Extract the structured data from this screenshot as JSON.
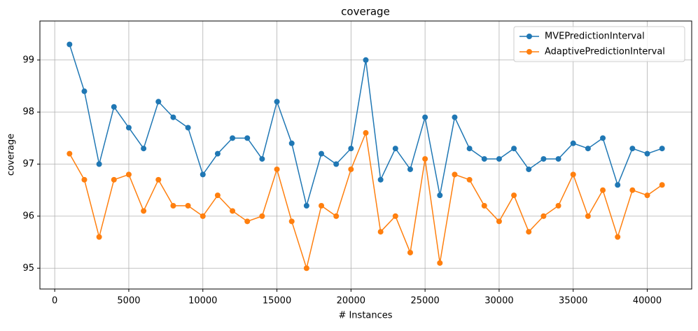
{
  "chart_data": {
    "type": "line",
    "title": "coverage",
    "x_label": "# Instances",
    "y_label": "coverage",
    "x": [
      1000,
      2000,
      3000,
      4000,
      5000,
      6000,
      7000,
      8000,
      9000,
      10000,
      11000,
      12000,
      13000,
      14000,
      15000,
      16000,
      17000,
      18000,
      19000,
      20000,
      21000,
      22000,
      23000,
      24000,
      25000,
      26000,
      27000,
      28000,
      29000,
      30000,
      31000,
      32000,
      33000,
      34000,
      35000,
      36000,
      37000,
      38000,
      39000,
      40000,
      41000
    ],
    "series": [
      {
        "name": "MVEPredictionInterval",
        "color": "#1f77b4",
        "values": [
          99.3,
          98.4,
          97.0,
          98.1,
          97.7,
          97.3,
          98.2,
          97.9,
          97.7,
          96.8,
          97.2,
          97.5,
          97.5,
          97.1,
          98.2,
          97.4,
          96.2,
          97.2,
          97.0,
          97.3,
          99.0,
          96.7,
          97.3,
          96.9,
          97.9,
          96.4,
          97.9,
          97.3,
          97.1,
          97.1,
          97.3,
          96.9,
          97.1,
          97.1,
          97.4,
          97.3,
          97.5,
          96.6,
          97.3,
          97.2,
          97.3
        ]
      },
      {
        "name": "AdaptivePredictionInterval",
        "color": "#ff7f0e",
        "values": [
          97.2,
          96.7,
          95.6,
          96.7,
          96.8,
          96.1,
          96.7,
          96.2,
          96.2,
          96.0,
          96.4,
          96.1,
          95.9,
          96.0,
          96.9,
          95.9,
          95.0,
          96.2,
          96.0,
          96.9,
          97.6,
          95.7,
          96.0,
          95.3,
          97.1,
          95.1,
          96.8,
          96.7,
          96.2,
          95.9,
          96.4,
          95.7,
          96.0,
          96.2,
          96.8,
          96.0,
          96.5,
          95.6,
          96.5,
          96.4,
          96.6
        ]
      }
    ],
    "xlim": [
      -1000,
      43000
    ],
    "ylim": [
      94.6,
      99.75
    ],
    "xticks": [
      0,
      5000,
      10000,
      15000,
      20000,
      25000,
      30000,
      35000,
      40000
    ],
    "yticks": [
      95,
      96,
      97,
      98,
      99
    ],
    "grid": true,
    "legend": "upper-right"
  }
}
